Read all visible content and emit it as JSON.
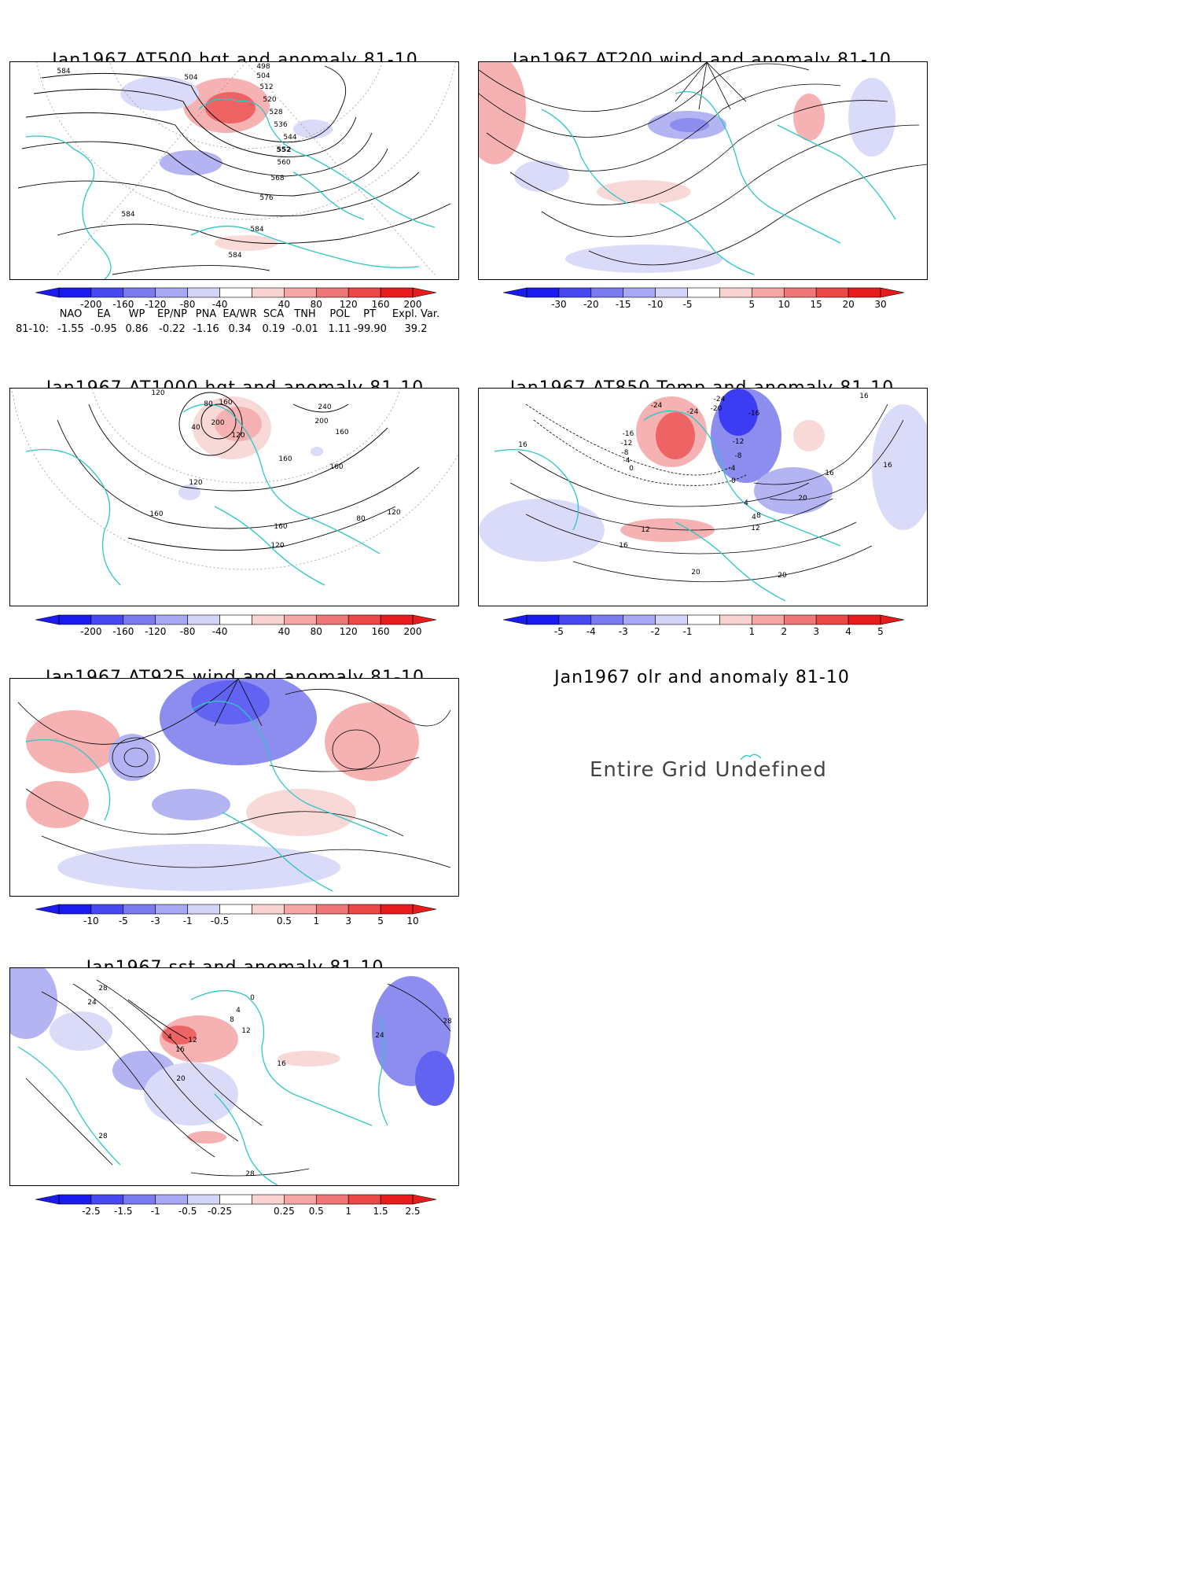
{
  "panels": {
    "p500": {
      "title": "Jan1967 AT500 hgt and anomaly 81-10",
      "contour_labels": [
        "584",
        "498",
        "504",
        "512",
        "520",
        "528",
        "536",
        "544",
        "552",
        "560",
        "568",
        "576",
        "584",
        "584",
        "584",
        "504"
      ]
    },
    "p200": {
      "title": "Jan1967 AT200 wind and anomaly 81-10"
    },
    "p1000": {
      "title": "Jan1967 AT1000 hgt and anomaly 81-10",
      "contour_labels": [
        "120",
        "80",
        "160",
        "200",
        "120",
        "240",
        "200",
        "160",
        "160",
        "40",
        "120",
        "160",
        "160",
        "80",
        "120",
        "160",
        "120"
      ]
    },
    "p850": {
      "title": "Jan1967 AT850 Temp and anomaly 81-10",
      "contour_labels": [
        "-24",
        "-20",
        "-24",
        "-24",
        "-16",
        "-16",
        "-12",
        "-12",
        "-8",
        "-8",
        "-4",
        "0",
        "-4",
        "0",
        "4",
        "16",
        "16",
        "4",
        "8",
        "12",
        "12",
        "16",
        "20",
        "16",
        "20",
        "20",
        "16"
      ]
    },
    "p925": {
      "title": "Jan1967 AT925 wind and anomaly 81-10"
    },
    "polr": {
      "title": "Jan1967 olr and anomaly 81-10",
      "message": "Entire Grid Undefined"
    },
    "psst": {
      "title": "Jan1967 sst and anomaly 81-10",
      "contour_labels": [
        "24",
        "28",
        "4",
        "12",
        "16",
        "20",
        "28",
        "28",
        "24",
        "16",
        "28",
        "8",
        "12",
        "4",
        "0"
      ]
    }
  },
  "colorbars": {
    "hgt500": [
      "-200",
      "-160",
      "-120",
      "-80",
      "-40",
      "40",
      "80",
      "120",
      "160",
      "200"
    ],
    "wind200": [
      "-30",
      "-20",
      "-15",
      "-10",
      "-5",
      "5",
      "10",
      "15",
      "20",
      "30"
    ],
    "hgt1000": [
      "-200",
      "-160",
      "-120",
      "-80",
      "-40",
      "40",
      "80",
      "120",
      "160",
      "200"
    ],
    "temp850": [
      "-5",
      "-4",
      "-3",
      "-2",
      "-1",
      "1",
      "2",
      "3",
      "4",
      "5"
    ],
    "wind925": [
      "-10",
      "-5",
      "-3",
      "-1",
      "-0.5",
      "0.5",
      "1",
      "3",
      "5",
      "10"
    ],
    "sst": [
      "-2.5",
      "-1.5",
      "-1",
      "-0.5",
      "-0.25",
      "0.25",
      "0.5",
      "1",
      "1.5",
      "2.5"
    ]
  },
  "colors": {
    "neg": [
      "#1b1bf0",
      "#4848f0",
      "#7a7aee",
      "#a7a7f2",
      "#d4d4f8"
    ],
    "pos": [
      "#f9d2d2",
      "#f5a5a5",
      "#f07777",
      "#ec4848",
      "#e81c1c"
    ],
    "coast": "#2ec6c6",
    "arrow_neg": "#1b1bf0",
    "arrow_pos": "#f01b1b"
  },
  "index_table": {
    "headers": [
      "NAO",
      "EA",
      "WP",
      "EP/NP",
      "PNA",
      "EA/WR",
      "SCA",
      "TNH",
      "POL",
      "PT",
      "Expl. Var."
    ],
    "row_label": "81-10:",
    "values": [
      "-1.55",
      "-0.95",
      "0.86",
      "-0.22",
      "-1.16",
      "0.34",
      "0.19",
      "-0.01",
      "1.11",
      "-99.90",
      "39.2"
    ]
  }
}
